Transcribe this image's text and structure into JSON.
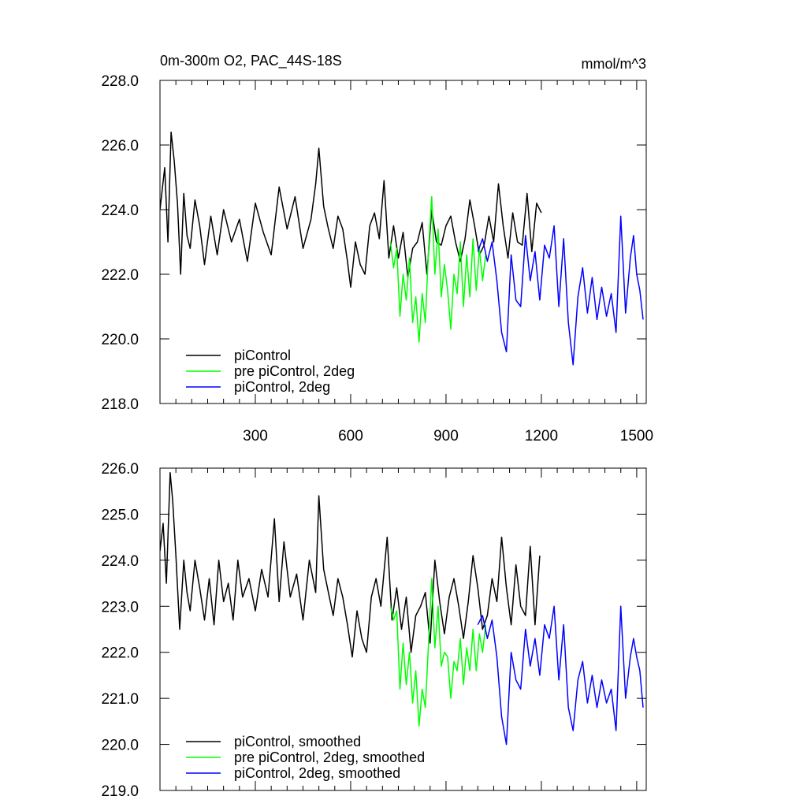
{
  "chart_data": [
    {
      "type": "line",
      "title_left": "0m-300m O2, PAC_44S-18S",
      "title_right": "mmol/m^3",
      "xlim": [
        0,
        1530
      ],
      "ylim": [
        218.0,
        228.0
      ],
      "x_ticks": [
        300,
        600,
        900,
        1200,
        1500
      ],
      "x_tick_labels": [
        "300",
        "600",
        "900",
        "1200",
        "1500"
      ],
      "y_ticks": [
        218.0,
        220.0,
        222.0,
        224.0,
        226.0,
        228.0
      ],
      "y_tick_labels": [
        "218.0",
        "220.0",
        "222.0",
        "224.0",
        "226.0",
        "228.0"
      ],
      "legend_position": "bottom-left",
      "series": [
        {
          "name": "piControl",
          "color": "#000000",
          "x": [
            0,
            15,
            25,
            35,
            45,
            55,
            65,
            75,
            85,
            95,
            110,
            125,
            140,
            160,
            180,
            200,
            225,
            250,
            275,
            300,
            325,
            350,
            375,
            400,
            425,
            450,
            475,
            490,
            500,
            515,
            530,
            545,
            560,
            575,
            590,
            600,
            615,
            630,
            645,
            660,
            675,
            690,
            705,
            720,
            735,
            750,
            765,
            780,
            795,
            810,
            825,
            840,
            855,
            870,
            885,
            900,
            915,
            930,
            945,
            960,
            975,
            990,
            1005,
            1020,
            1035,
            1050,
            1065,
            1080,
            1095,
            1110,
            1125,
            1140,
            1155,
            1170,
            1185,
            1200
          ],
          "values": [
            224.0,
            225.3,
            223.0,
            226.4,
            225.5,
            224.2,
            222.0,
            224.5,
            223.2,
            222.8,
            224.3,
            223.5,
            222.3,
            223.8,
            222.6,
            224.0,
            223.0,
            223.7,
            222.4,
            224.2,
            223.3,
            222.6,
            224.7,
            223.4,
            224.4,
            222.8,
            223.7,
            224.8,
            225.9,
            224.1,
            223.4,
            222.8,
            223.8,
            223.4,
            222.4,
            221.6,
            223.0,
            222.3,
            222.0,
            223.5,
            223.9,
            223.1,
            224.9,
            222.5,
            223.5,
            222.5,
            223.3,
            221.9,
            222.8,
            223.0,
            223.6,
            222.0,
            224.0,
            223.0,
            222.9,
            223.5,
            223.8,
            223.0,
            222.4,
            223.1,
            224.3,
            223.5,
            222.6,
            222.9,
            223.8,
            223.0,
            224.8,
            223.5,
            222.5,
            223.9,
            223.0,
            222.9,
            224.5,
            222.7,
            224.2,
            223.9
          ]
        },
        {
          "name": "pre piControl, 2deg",
          "color": "#00ff00",
          "x": [
            725,
            735,
            745,
            755,
            765,
            775,
            785,
            795,
            805,
            815,
            825,
            835,
            845,
            855,
            865,
            875,
            885,
            895,
            905,
            915,
            925,
            935,
            945,
            955,
            965,
            975,
            985,
            995,
            1005,
            1015,
            1025
          ],
          "values": [
            223.0,
            222.2,
            222.8,
            220.7,
            222.0,
            221.2,
            222.5,
            220.5,
            221.3,
            219.9,
            221.4,
            220.5,
            222.8,
            224.4,
            222.0,
            223.4,
            221.3,
            222.3,
            221.5,
            220.3,
            222.0,
            221.4,
            223.0,
            221.0,
            222.6,
            221.3,
            223.1,
            221.5,
            222.8,
            221.8,
            222.6
          ]
        },
        {
          "name": "piControl, 2deg",
          "color": "#0000ff",
          "x": [
            1000,
            1015,
            1030,
            1045,
            1060,
            1075,
            1090,
            1105,
            1120,
            1135,
            1150,
            1165,
            1180,
            1195,
            1210,
            1225,
            1240,
            1255,
            1270,
            1285,
            1300,
            1315,
            1330,
            1345,
            1360,
            1375,
            1390,
            1405,
            1420,
            1435,
            1450,
            1465,
            1480,
            1490,
            1500,
            1510,
            1520
          ],
          "values": [
            222.7,
            223.1,
            222.4,
            223.0,
            221.8,
            220.2,
            219.6,
            222.6,
            221.2,
            221.0,
            223.2,
            221.8,
            222.7,
            221.2,
            222.9,
            222.5,
            223.5,
            221.0,
            223.1,
            220.5,
            219.2,
            221.3,
            222.2,
            220.8,
            221.9,
            220.6,
            221.6,
            220.7,
            221.4,
            220.2,
            223.8,
            220.8,
            222.5,
            223.2,
            222.0,
            221.5,
            220.6
          ]
        }
      ]
    },
    {
      "type": "line",
      "xlim": [
        0,
        1530
      ],
      "ylim": [
        219.0,
        226.0
      ],
      "x_ticks": [
        300,
        600,
        900,
        1200,
        1500
      ],
      "y_ticks": [
        219.0,
        220.0,
        221.0,
        222.0,
        223.0,
        224.0,
        225.0,
        226.0
      ],
      "y_tick_labels": [
        "219.0",
        "220.0",
        "221.0",
        "222.0",
        "223.0",
        "224.0",
        "225.0",
        "226.0"
      ],
      "legend_position": "bottom-left",
      "series": [
        {
          "name": "piControl, smoothed",
          "color": "#000000",
          "x": [
            0,
            10,
            20,
            32,
            40,
            50,
            62,
            75,
            85,
            95,
            110,
            125,
            140,
            155,
            170,
            185,
            200,
            215,
            230,
            245,
            260,
            280,
            300,
            320,
            340,
            360,
            375,
            390,
            410,
            430,
            450,
            470,
            490,
            500,
            515,
            530,
            545,
            560,
            575,
            590,
            605,
            620,
            635,
            650,
            665,
            680,
            695,
            715,
            730,
            745,
            760,
            775,
            790,
            805,
            820,
            835,
            850,
            865,
            880,
            895,
            910,
            925,
            940,
            955,
            970,
            985,
            1000,
            1015,
            1030,
            1045,
            1060,
            1075,
            1090,
            1105,
            1120,
            1135,
            1150,
            1165,
            1180,
            1195
          ],
          "values": [
            224.2,
            224.8,
            223.5,
            225.9,
            225.3,
            224.1,
            222.5,
            224.0,
            223.3,
            222.9,
            224.0,
            223.4,
            222.7,
            223.6,
            222.6,
            224.0,
            223.1,
            223.5,
            222.7,
            224.0,
            223.2,
            223.6,
            222.9,
            223.8,
            223.2,
            224.9,
            223.1,
            224.4,
            223.2,
            223.7,
            222.7,
            224.0,
            223.3,
            225.4,
            223.8,
            223.3,
            222.8,
            223.6,
            223.2,
            222.6,
            221.9,
            222.9,
            222.3,
            222.0,
            223.2,
            223.6,
            223.0,
            224.5,
            222.7,
            223.4,
            222.5,
            223.2,
            222.0,
            222.8,
            223.0,
            223.3,
            222.2,
            224.0,
            223.1,
            222.4,
            223.2,
            223.6,
            223.0,
            222.3,
            223.1,
            224.1,
            223.4,
            222.5,
            222.8,
            223.6,
            223.1,
            224.5,
            223.4,
            222.6,
            223.9,
            223.0,
            222.8,
            224.3,
            222.6,
            224.1
          ]
        },
        {
          "name": "pre piControl, 2deg, smoothed",
          "color": "#00ff00",
          "x": [
            725,
            735,
            745,
            755,
            765,
            775,
            785,
            795,
            805,
            815,
            825,
            835,
            845,
            855,
            865,
            875,
            885,
            895,
            905,
            915,
            925,
            935,
            945,
            955,
            965,
            975,
            985,
            995,
            1005,
            1015,
            1025
          ],
          "values": [
            223.0,
            222.7,
            222.9,
            221.2,
            222.2,
            221.3,
            222.0,
            220.9,
            221.6,
            220.4,
            221.2,
            220.8,
            222.2,
            223.6,
            222.1,
            223.0,
            221.7,
            222.0,
            221.9,
            221.0,
            221.8,
            221.6,
            222.3,
            221.3,
            222.1,
            221.6,
            222.5,
            221.6,
            222.4,
            222.0,
            222.6
          ]
        },
        {
          "name": "piControl, 2deg, smoothed",
          "color": "#0000ff",
          "x": [
            1000,
            1015,
            1030,
            1045,
            1060,
            1075,
            1090,
            1105,
            1120,
            1135,
            1150,
            1165,
            1180,
            1195,
            1210,
            1225,
            1240,
            1255,
            1270,
            1285,
            1300,
            1315,
            1330,
            1345,
            1360,
            1375,
            1390,
            1405,
            1420,
            1435,
            1450,
            1465,
            1480,
            1490,
            1500,
            1510,
            1520
          ],
          "values": [
            222.6,
            222.8,
            222.3,
            222.7,
            221.9,
            220.6,
            220.0,
            222.0,
            221.4,
            221.2,
            222.5,
            221.7,
            222.3,
            221.5,
            222.6,
            222.3,
            223.0,
            221.4,
            222.6,
            220.8,
            220.3,
            221.4,
            221.8,
            220.9,
            221.5,
            220.8,
            221.4,
            220.9,
            221.2,
            220.3,
            223.0,
            221.0,
            221.9,
            222.3,
            221.9,
            221.6,
            220.8
          ]
        }
      ]
    }
  ]
}
